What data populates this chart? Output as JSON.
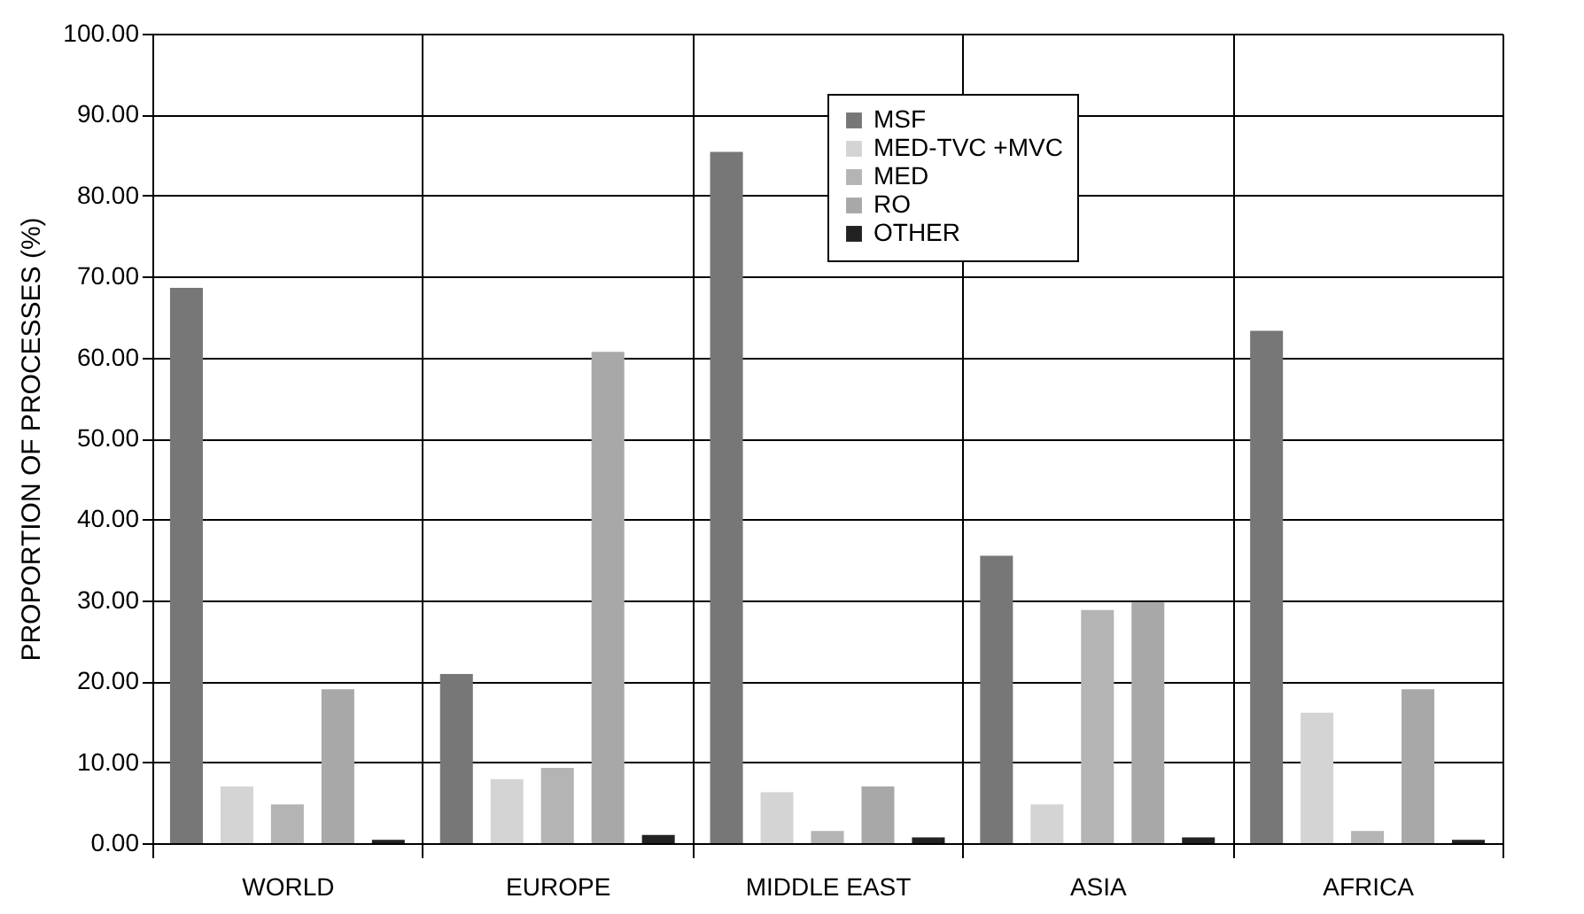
{
  "chart_data": {
    "type": "bar",
    "ylabel": "PROPORTION OF PROCESSES (%)",
    "categories": [
      "WORLD",
      "EUROPE",
      "MIDDLE EAST",
      "ASIA",
      "AFRICA"
    ],
    "series": [
      {
        "name": "MSF",
        "color": "#777777",
        "values": [
          68.6,
          20.9,
          85.4,
          35.5,
          63.3
        ]
      },
      {
        "name": "MED-TVC +MVC",
        "color": "#d4d4d4",
        "values": [
          7.0,
          7.9,
          6.3,
          4.8,
          16.1
        ]
      },
      {
        "name": "MED",
        "color": "#b4b4b4",
        "values": [
          4.8,
          9.3,
          1.5,
          28.8,
          1.5
        ]
      },
      {
        "name": "RO",
        "color": "#a8a8a8",
        "values": [
          19.0,
          60.7,
          7.0,
          29.8,
          19.0
        ]
      },
      {
        "name": "OTHER",
        "color": "#222222",
        "values": [
          0.4,
          1.0,
          0.7,
          0.7,
          0.4
        ]
      }
    ],
    "ylim": [
      0,
      100
    ],
    "yticks": [
      {
        "value": 0,
        "label": "0.00"
      },
      {
        "value": 10,
        "label": "10.00"
      },
      {
        "value": 20,
        "label": "20.00"
      },
      {
        "value": 30,
        "label": "30.00"
      },
      {
        "value": 40,
        "label": "40.00"
      },
      {
        "value": 50,
        "label": "50.00"
      },
      {
        "value": 60,
        "label": "60.00"
      },
      {
        "value": 70,
        "label": "70.00"
      },
      {
        "value": 80,
        "label": "80.00"
      },
      {
        "value": 90,
        "label": "90.00"
      },
      {
        "value": 100,
        "label": "100.00"
      }
    ],
    "grid": true,
    "legend": "top"
  }
}
